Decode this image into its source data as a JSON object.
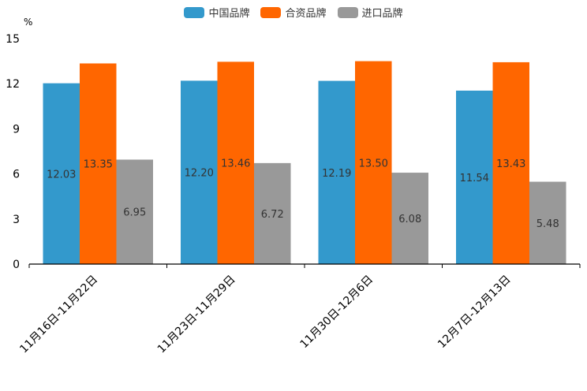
{
  "chart_data": {
    "type": "bar",
    "unit": "%",
    "categories": [
      "11月16日-11月22日",
      "11月23日-11月29日",
      "11月30日-12月6日",
      "12月7日-12月13日"
    ],
    "series": [
      {
        "name": "中国品牌",
        "color": "#3399cc",
        "values": [
          12.03,
          12.2,
          12.19,
          11.54
        ]
      },
      {
        "name": "合资品牌",
        "color": "#ff6600",
        "values": [
          13.35,
          13.46,
          13.5,
          13.43
        ]
      },
      {
        "name": "进口品牌",
        "color": "#999999",
        "values": [
          6.95,
          6.72,
          6.08,
          5.48
        ]
      }
    ],
    "ylim": [
      0,
      15
    ],
    "yticks": [
      0,
      3,
      6,
      9,
      12,
      15
    ]
  }
}
